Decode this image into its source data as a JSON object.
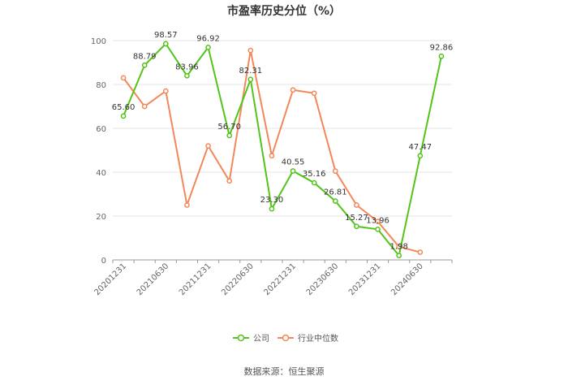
{
  "chart_data": {
    "type": "line",
    "title": "市盈率历史分位（%）",
    "ylim": [
      0,
      100
    ],
    "yticks": [
      "0",
      "20",
      "40",
      "60",
      "80",
      "100"
    ],
    "x_tick_labels": [
      "20201231",
      "20210630",
      "20211231",
      "20220630",
      "20221231",
      "20230630",
      "20231231",
      "20240630"
    ],
    "x_count": 16,
    "series": [
      {
        "name": "公司",
        "color": "#52c41a",
        "values": [
          65.6,
          88.79,
          98.57,
          83.96,
          96.92,
          56.7,
          82.31,
          23.3,
          40.55,
          35.16,
          26.81,
          15.27,
          13.96,
          1.98,
          47.47,
          92.86
        ],
        "labels": [
          "65.60",
          "88.79",
          "98.57",
          "83.96",
          "96.92",
          "56.70",
          "82.31",
          "23.30",
          "40.55",
          "35.16",
          "26.81",
          "15.27",
          "13.96",
          "1.98",
          "47.47",
          "92.86"
        ]
      },
      {
        "name": "行业中位数",
        "color": "#f4875a",
        "values": [
          83,
          70,
          77,
          25,
          52,
          36,
          95.5,
          47.5,
          77.5,
          76,
          40.5,
          25,
          17.5,
          6,
          3.5,
          null
        ]
      }
    ],
    "source": "数据来源：恒生聚源"
  }
}
